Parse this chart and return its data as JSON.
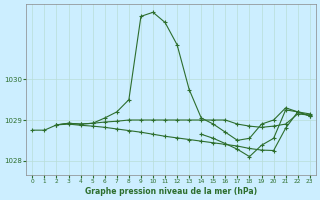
{
  "title": "Graphe pression niveau de la mer (hPa)",
  "background_color": "#cceeff",
  "grid_color": "#b8ddd8",
  "line_color": "#2d6e2d",
  "xlim": [
    -0.5,
    23.5
  ],
  "ylim": [
    1027.65,
    1031.85
  ],
  "yticks": [
    1028,
    1029,
    1030
  ],
  "xticks": [
    0,
    1,
    2,
    3,
    4,
    5,
    6,
    7,
    8,
    9,
    10,
    11,
    12,
    13,
    14,
    15,
    16,
    17,
    18,
    19,
    20,
    21,
    22,
    23
  ],
  "series": [
    {
      "x": [
        0,
        1,
        2,
        3,
        4,
        5,
        6,
        7,
        8,
        9,
        10,
        11,
        12,
        13,
        14,
        15,
        16,
        17,
        18,
        19,
        20,
        21,
        22,
        23
      ],
      "y": [
        1028.75,
        1028.75,
        1028.88,
        1028.92,
        1028.9,
        1028.92,
        1029.05,
        1029.2,
        1029.5,
        1031.55,
        1031.65,
        1031.4,
        1030.85,
        1029.75,
        1029.05,
        1028.9,
        1028.7,
        1028.5,
        1028.55,
        1028.9,
        1029.0,
        1029.3,
        1029.2,
        1029.15
      ]
    },
    {
      "x": [
        2,
        3,
        4,
        5,
        6,
        7,
        8,
        9,
        10,
        11,
        12,
        13,
        14,
        15,
        16,
        17,
        18,
        19,
        20,
        21,
        22,
        23
      ],
      "y": [
        1028.88,
        1028.92,
        1028.9,
        1028.92,
        1028.95,
        1028.97,
        1029.0,
        1029.0,
        1029.0,
        1029.0,
        1029.0,
        1029.0,
        1029.0,
        1029.0,
        1029.0,
        1028.9,
        1028.85,
        1028.82,
        1028.85,
        1028.9,
        1029.15,
        1029.12
      ]
    },
    {
      "x": [
        2,
        3,
        4,
        5,
        6,
        7,
        8,
        9,
        10,
        11,
        12,
        13,
        14,
        15,
        16,
        17,
        18,
        19,
        20,
        21,
        22,
        23
      ],
      "y": [
        1028.88,
        1028.9,
        1028.87,
        1028.85,
        1028.82,
        1028.78,
        1028.74,
        1028.7,
        1028.65,
        1028.6,
        1028.56,
        1028.52,
        1028.48,
        1028.44,
        1028.4,
        1028.36,
        1028.3,
        1028.26,
        1028.25,
        1028.8,
        1029.2,
        1029.1
      ]
    },
    {
      "x": [
        14,
        15,
        16,
        17,
        18,
        19,
        20,
        21,
        22,
        23
      ],
      "y": [
        1028.65,
        1028.55,
        1028.42,
        1028.28,
        1028.1,
        1028.38,
        1028.55,
        1029.25,
        1029.2,
        1029.1
      ]
    }
  ]
}
